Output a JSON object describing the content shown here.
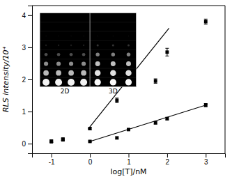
{
  "chart_data": {
    "type": "scatter",
    "xlabel": "log[T]/nM",
    "ylabel": "RLS intensity/10⁴",
    "xlim": [
      -1.5,
      3.5
    ],
    "ylim": [
      -0.3,
      4.3
    ],
    "xticks": [
      -1,
      0,
      1,
      2,
      3
    ],
    "yticks": [
      0,
      1,
      2,
      3,
      4
    ],
    "grid": false,
    "color": "black",
    "marker": "square",
    "series": [
      {
        "x": [
          -1.0,
          -0.7,
          0.0,
          0.699,
          1.699,
          2.0,
          3.0
        ],
        "values": [
          0.08,
          0.14,
          0.47,
          1.35,
          1.95,
          2.85,
          3.8
        ],
        "errors": [
          0.04,
          0.04,
          0.04,
          0.07,
          0.07,
          0.12,
          0.08
        ],
        "fit_x": [
          -0.05,
          2.05
        ],
        "fit_values": [
          0.45,
          3.6
        ]
      },
      {
        "x": [
          -1.0,
          -0.7,
          0.0,
          0.699,
          1.0,
          1.699,
          2.0,
          3.0
        ],
        "values": [
          0.06,
          0.12,
          0.07,
          0.18,
          0.44,
          0.65,
          0.78,
          1.2
        ],
        "errors": [
          0.02,
          0.03,
          0.02,
          0.03,
          0.03,
          0.04,
          0.04,
          0.05
        ],
        "fit_x": [
          0.0,
          3.05
        ],
        "fit_values": [
          0.07,
          1.22
        ]
      }
    ],
    "inset": {
      "panels": [
        {
          "label": "2D",
          "columns": 4,
          "brightness": [
            0.0,
            0.0,
            0.05,
            0.12,
            0.3,
            0.55,
            0.72,
            0.95
          ],
          "size": [
            0.0,
            0.0,
            1.0,
            1.5,
            3.0,
            4.0,
            5.0,
            6.5
          ]
        },
        {
          "label": "3D",
          "columns": 3,
          "brightness": [
            0.0,
            0.0,
            0.05,
            0.2,
            0.5,
            0.75,
            0.88,
            0.98
          ],
          "size": [
            0.0,
            0.0,
            1.0,
            2.0,
            3.5,
            4.5,
            5.5,
            6.0
          ]
        }
      ]
    }
  }
}
